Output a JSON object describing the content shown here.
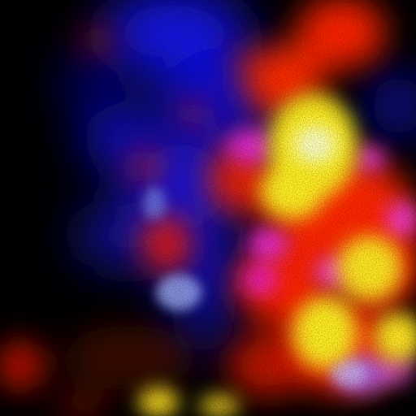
{
  "image": {
    "kind": "abstract fluorescence-like photograph",
    "background": "#000000",
    "palette": {
      "blue": "#1a1aff",
      "deep_blue": "#0a0ad0",
      "red": "#ff2200",
      "orange_red": "#ff3a10",
      "yellow": "#ffee22",
      "white_core": "#ffffff",
      "magenta": "#ff33ff",
      "violet": "#8844ff",
      "pale_blue": "#aabbff"
    },
    "grain": true
  }
}
